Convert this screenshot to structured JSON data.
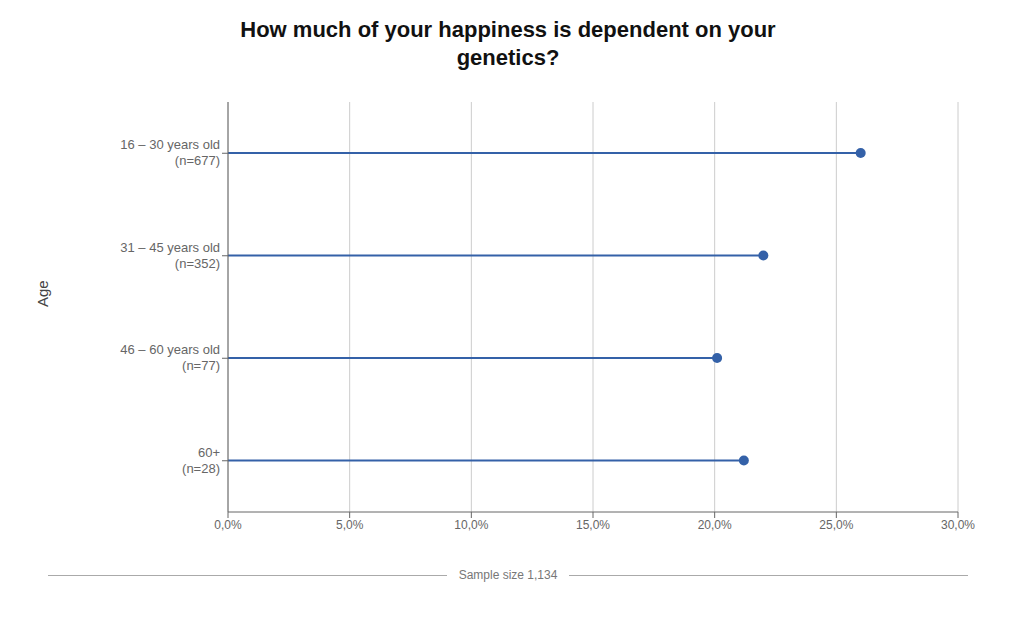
{
  "chart_data": {
    "type": "lollipop",
    "title": "How much of your happiness is dependent on your\ngenetics?",
    "orientation": "horizontal",
    "categories": [
      "16 – 30 years old\n(n=677)",
      "31 – 45 years old\n(n=352)",
      "46 – 60 years old\n(n=77)",
      "60+\n(n=28)"
    ],
    "values": [
      0.26,
      0.22,
      0.201,
      0.212
    ],
    "ylabel": "Age",
    "xlim": [
      0,
      0.3
    ],
    "xticks": [
      {
        "value": 0.0,
        "label": "0,0%"
      },
      {
        "value": 0.05,
        "label": "5,0%"
      },
      {
        "value": 0.1,
        "label": "10,0%"
      },
      {
        "value": 0.15,
        "label": "15,0%"
      },
      {
        "value": 0.2,
        "label": "20,0%"
      },
      {
        "value": 0.25,
        "label": "25,0%"
      },
      {
        "value": 0.3,
        "label": "30,0%"
      }
    ],
    "color": "#3461a8",
    "grid": true,
    "annotations": [
      "Sample size 1,134"
    ]
  }
}
